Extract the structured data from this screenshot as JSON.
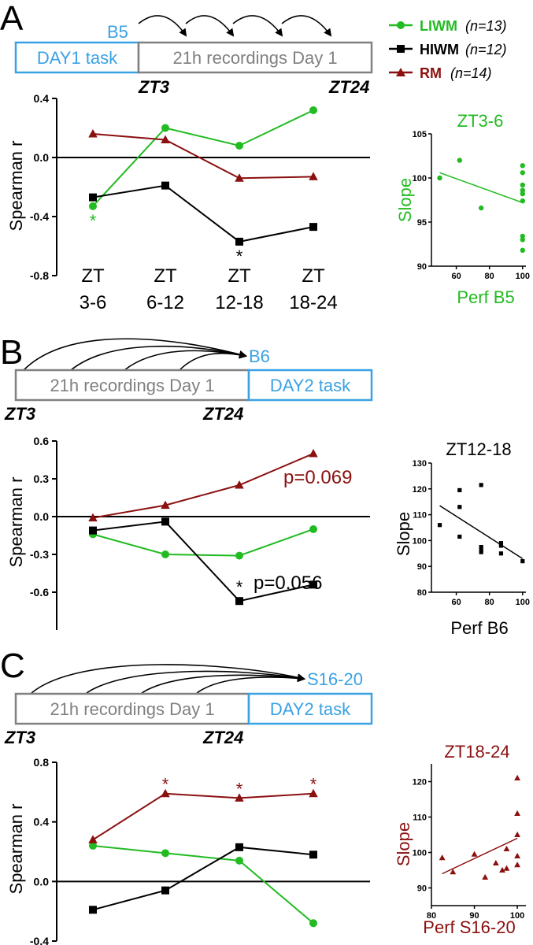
{
  "colors": {
    "LIWM": "#22bb22",
    "HIWM": "#000000",
    "RM": "#8b1010",
    "blue": "#3aa1e4",
    "gray": "#808080"
  },
  "legend": [
    {
      "key": "LIWM",
      "name": "LIWM",
      "n": "(n=13)",
      "marker": "circle"
    },
    {
      "key": "HIWM",
      "name": "HIWM",
      "n": "(n=12)",
      "marker": "square"
    },
    {
      "key": "RM",
      "name": "RM",
      "n": "(n=14)",
      "marker": "triangle"
    }
  ],
  "panelA": {
    "letter": "A",
    "arrow_target": "B5",
    "box_left": "DAY1 task",
    "box_right": "21h recordings Day 1",
    "zt_start": "ZT3",
    "zt_end": "ZT24",
    "categories_line1": [
      "ZT",
      "ZT",
      "ZT",
      "ZT"
    ],
    "categories_line2": [
      "3-6",
      "6-12",
      "12-18",
      "18-24"
    ],
    "inset_title": "ZT3-6",
    "inset_ylabel": "Slope",
    "inset_xlabel": "Perf B5"
  },
  "panelB": {
    "letter": "B",
    "arrow_target": "B6",
    "box_left": "21h recordings Day 1",
    "box_right": "DAY2 task",
    "zt_start": "ZT3",
    "zt_end": "ZT24",
    "annotation_rm": "p=0.069",
    "annotation_hiwm": "p=0.056",
    "inset_title": "ZT12-18",
    "inset_ylabel": "Slope",
    "inset_xlabel": "Perf B6"
  },
  "panelC": {
    "letter": "C",
    "arrow_target": "S16-20",
    "box_left": "21h recordings Day 1",
    "box_right": "DAY2 task",
    "zt_start": "ZT3",
    "zt_end": "ZT24",
    "inset_title": "ZT18-24",
    "inset_ylabel": "Slope",
    "inset_xlabel": "Perf S16-20"
  },
  "chart_data": [
    {
      "type": "line",
      "panel": "A",
      "ylabel": "Spearman r",
      "ylim": [
        -0.8,
        0.4
      ],
      "yticks": [
        "0.4",
        "0.0",
        "-0.4",
        "-0.8"
      ],
      "categories": [
        "ZT 3-6",
        "ZT 6-12",
        "ZT 12-18",
        "ZT 18-24"
      ],
      "series": [
        {
          "name": "LIWM",
          "values": [
            -0.33,
            0.2,
            0.08,
            0.32
          ],
          "stars": [
            true,
            false,
            false,
            false
          ]
        },
        {
          "name": "HIWM",
          "values": [
            -0.27,
            -0.19,
            -0.57,
            -0.47
          ],
          "stars": [
            false,
            false,
            true,
            false
          ]
        },
        {
          "name": "RM",
          "values": [
            0.16,
            0.12,
            -0.14,
            -0.13
          ],
          "stars": [
            false,
            false,
            false,
            false
          ]
        }
      ]
    },
    {
      "type": "scatter",
      "panel": "A-inset",
      "title": "ZT3-6",
      "xlabel": "Perf B5",
      "ylabel": "Slope",
      "xlim": [
        45,
        102
      ],
      "ylim": [
        90,
        105
      ],
      "xticks": [
        "60",
        "80",
        "100"
      ],
      "yticks": [
        "105",
        "100",
        "95",
        "90"
      ],
      "points": [
        [
          50,
          100
        ],
        [
          62,
          102
        ],
        [
          75,
          96.6
        ],
        [
          100,
          101.4
        ],
        [
          100,
          100.6
        ],
        [
          100,
          99.2
        ],
        [
          100,
          98.6
        ],
        [
          100,
          98.2
        ],
        [
          100,
          97.4
        ],
        [
          100,
          93.4
        ],
        [
          100,
          93
        ],
        [
          100,
          91.8
        ]
      ],
      "fit": [
        [
          50,
          100.6
        ],
        [
          100,
          97.2
        ]
      ]
    },
    {
      "type": "line",
      "panel": "B",
      "ylabel": "Spearman r",
      "ylim": [
        -0.9,
        0.6
      ],
      "yticks": [
        "0.6",
        "0.3",
        "0.0",
        "-0.3",
        "-0.6"
      ],
      "categories": [
        "ZT 3-6",
        "ZT 6-12",
        "ZT 12-18",
        "ZT 18-24"
      ],
      "series": [
        {
          "name": "LIWM",
          "values": [
            -0.14,
            -0.3,
            -0.31,
            -0.1
          ],
          "stars": [
            false,
            false,
            false,
            false
          ]
        },
        {
          "name": "HIWM",
          "values": [
            -0.11,
            -0.04,
            -0.67,
            -0.54
          ],
          "stars": [
            false,
            false,
            true,
            false
          ]
        },
        {
          "name": "RM",
          "values": [
            -0.01,
            0.09,
            0.25,
            0.5
          ],
          "stars": [
            false,
            false,
            false,
            false
          ]
        }
      ]
    },
    {
      "type": "scatter",
      "panel": "B-inset",
      "title": "ZT12-18",
      "xlabel": "Perf B6",
      "ylabel": "Slope",
      "xlim": [
        45,
        102
      ],
      "ylim": [
        80,
        130
      ],
      "xticks": [
        "60",
        "80",
        "100"
      ],
      "yticks": [
        "130",
        "120",
        "110",
        "100",
        "90",
        "80"
      ],
      "points": [
        [
          50,
          106
        ],
        [
          62,
          119.5
        ],
        [
          62,
          113
        ],
        [
          62,
          101.5
        ],
        [
          75,
          121.5
        ],
        [
          75,
          97.5
        ],
        [
          75,
          96.5
        ],
        [
          75,
          95.5
        ],
        [
          87,
          99
        ],
        [
          87,
          98
        ],
        [
          87,
          95
        ],
        [
          100,
          92
        ]
      ],
      "fit": [
        [
          50,
          113.5
        ],
        [
          100,
          93
        ]
      ]
    },
    {
      "type": "line",
      "panel": "C",
      "ylabel": "Spearman r",
      "ylim": [
        -0.4,
        0.8
      ],
      "yticks": [
        "0.8",
        "0.4",
        "0.0",
        "-0.4"
      ],
      "categories": [
        "ZT 3-6",
        "ZT 6-12",
        "ZT 12-18",
        "ZT 18-24"
      ],
      "series": [
        {
          "name": "LIWM",
          "values": [
            0.24,
            0.19,
            0.14,
            -0.28
          ],
          "stars": [
            false,
            false,
            false,
            false
          ]
        },
        {
          "name": "HIWM",
          "values": [
            -0.19,
            -0.06,
            0.23,
            0.18
          ],
          "stars": [
            false,
            false,
            false,
            false
          ]
        },
        {
          "name": "RM",
          "values": [
            0.28,
            0.59,
            0.56,
            0.59
          ],
          "stars": [
            false,
            true,
            true,
            true
          ]
        }
      ]
    },
    {
      "type": "scatter",
      "panel": "C-inset",
      "title": "ZT18-24",
      "xlabel": "Perf S16-20",
      "ylabel": "Slope",
      "xlim": [
        80,
        102
      ],
      "ylim": [
        85,
        125
      ],
      "xticks": [
        "80",
        "90",
        "100"
      ],
      "yticks": [
        "120",
        "110",
        "100",
        "90"
      ],
      "points": [
        [
          82.5,
          98.5
        ],
        [
          85,
          94.5
        ],
        [
          90,
          99.5
        ],
        [
          92.5,
          93
        ],
        [
          95,
          97
        ],
        [
          96.5,
          95
        ],
        [
          97.5,
          101
        ],
        [
          97.5,
          95.5
        ],
        [
          100,
          121
        ],
        [
          100,
          111
        ],
        [
          100,
          105
        ],
        [
          100,
          99
        ],
        [
          100,
          96.5
        ]
      ],
      "fit": [
        [
          82.5,
          94
        ],
        [
          100,
          104
        ]
      ]
    }
  ]
}
